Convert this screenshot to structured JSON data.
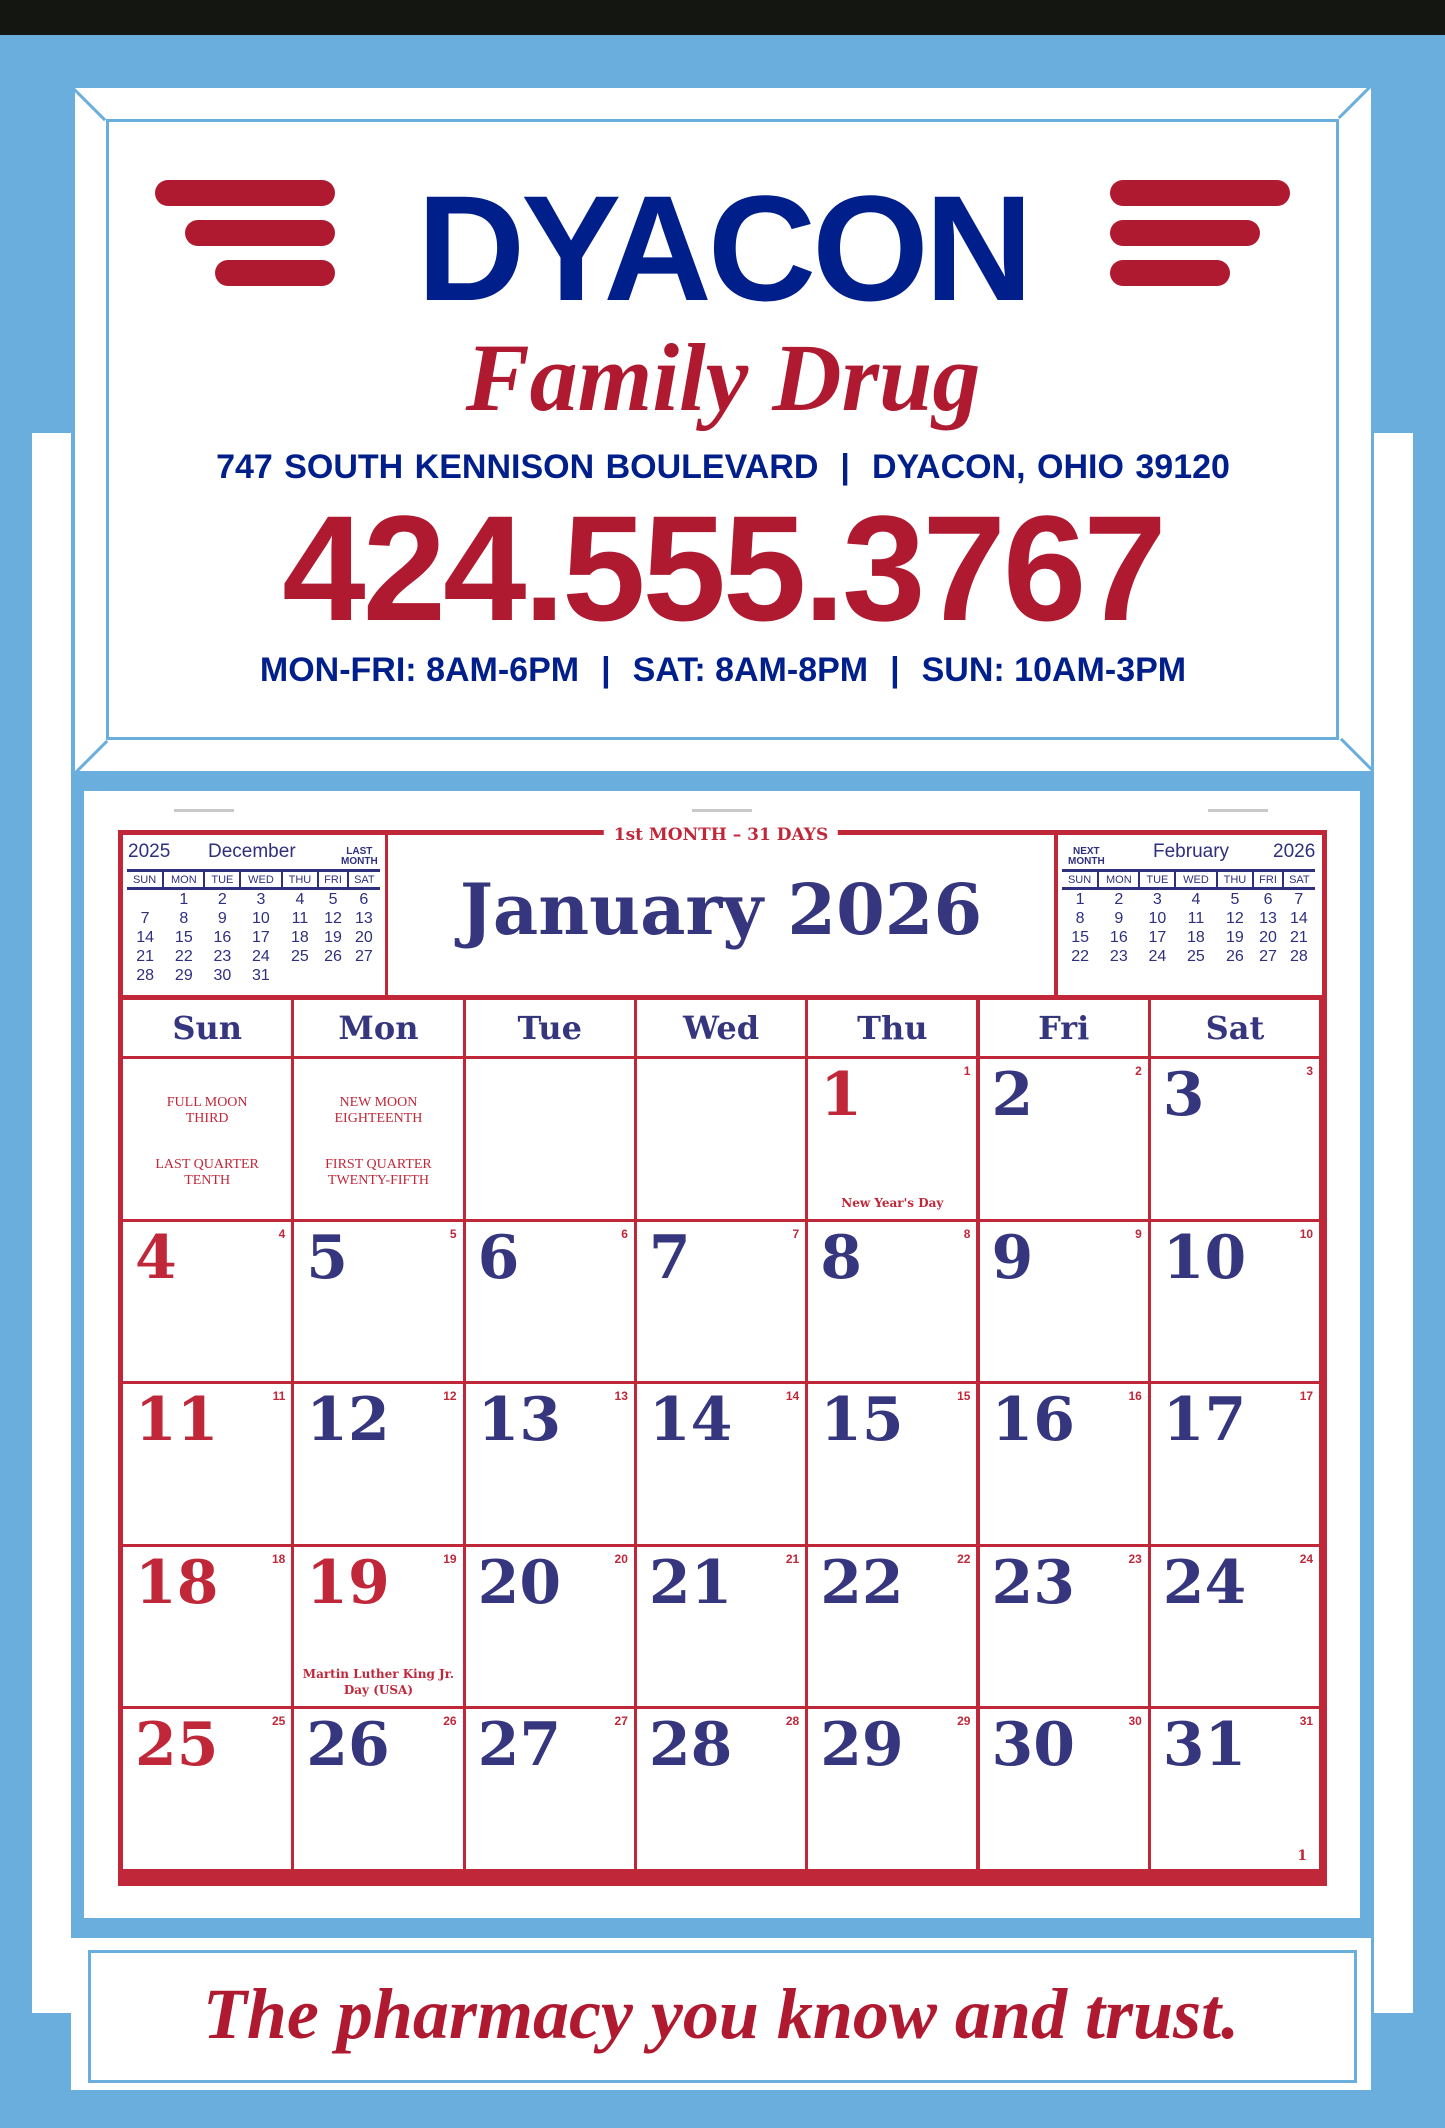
{
  "brand": {
    "name": "DYACON",
    "subtitle": "Family Drug",
    "address": "747 SOUTH KENNISON BOULEVARD",
    "city": "DYACON, OHIO 39120",
    "phone": "424.555.3767",
    "hours": [
      "MON-FRI: 8AM-6PM",
      "SAT: 8AM-8PM",
      "SUN: 10AM-3PM"
    ],
    "separator": "|",
    "tagline": "The pharmacy you know and trust."
  },
  "colors": {
    "red": "#c0283a",
    "navy": "#36367e",
    "brand_blue": "#001f8a",
    "background": "#6aaedd"
  },
  "calendar": {
    "month_label": "1st MONTH – 31 DAYS",
    "title": "January 2026",
    "weekdays": [
      "Sun",
      "Mon",
      "Tue",
      "Wed",
      "Thu",
      "Fri",
      "Sat"
    ],
    "prev": {
      "year": "2025",
      "month": "December",
      "tag": [
        "LAST",
        "MONTH"
      ],
      "weekdays": [
        "SUN",
        "MON",
        "TUE",
        "WED",
        "THU",
        "FRI",
        "SAT"
      ],
      "rows": [
        [
          "",
          "1",
          "2",
          "3",
          "4",
          "5",
          "6"
        ],
        [
          "7",
          "8",
          "9",
          "10",
          "11",
          "12",
          "13"
        ],
        [
          "14",
          "15",
          "16",
          "17",
          "18",
          "19",
          "20"
        ],
        [
          "21",
          "22",
          "23",
          "24",
          "25",
          "26",
          "27"
        ],
        [
          "28",
          "29",
          "30",
          "31",
          "",
          "",
          ""
        ]
      ]
    },
    "next": {
      "year": "2026",
      "month": "February",
      "tag": [
        "NEXT",
        "MONTH"
      ],
      "weekdays": [
        "SUN",
        "MON",
        "TUE",
        "WED",
        "THU",
        "FRI",
        "SAT"
      ],
      "rows": [
        [
          "1",
          "2",
          "3",
          "4",
          "5",
          "6",
          "7"
        ],
        [
          "8",
          "9",
          "10",
          "11",
          "12",
          "13",
          "14"
        ],
        [
          "15",
          "16",
          "17",
          "18",
          "19",
          "20",
          "21"
        ],
        [
          "22",
          "23",
          "24",
          "25",
          "26",
          "27",
          "28"
        ]
      ]
    },
    "moon_phases": [
      {
        "col": 0,
        "lines": [
          [
            "FULL MOON",
            "THIRD"
          ],
          [
            "LAST QUARTER",
            "TENTH"
          ]
        ]
      },
      {
        "col": 1,
        "lines": [
          [
            "NEW MOON",
            "EIGHTEENTH"
          ],
          [
            "FIRST QUARTER",
            "TWENTY-FIFTH"
          ]
        ]
      }
    ],
    "weeks": [
      [
        null,
        null,
        null,
        null,
        {
          "day": "1",
          "doy": "1",
          "red": true,
          "note": "New Year's Day"
        },
        {
          "day": "2",
          "doy": "2"
        },
        {
          "day": "3",
          "doy": "3"
        }
      ],
      [
        {
          "day": "4",
          "doy": "4",
          "red": true
        },
        {
          "day": "5",
          "doy": "5"
        },
        {
          "day": "6",
          "doy": "6"
        },
        {
          "day": "7",
          "doy": "7"
        },
        {
          "day": "8",
          "doy": "8"
        },
        {
          "day": "9",
          "doy": "9"
        },
        {
          "day": "10",
          "doy": "10"
        }
      ],
      [
        {
          "day": "11",
          "doy": "11",
          "red": true
        },
        {
          "day": "12",
          "doy": "12"
        },
        {
          "day": "13",
          "doy": "13"
        },
        {
          "day": "14",
          "doy": "14"
        },
        {
          "day": "15",
          "doy": "15"
        },
        {
          "day": "16",
          "doy": "16"
        },
        {
          "day": "17",
          "doy": "17"
        }
      ],
      [
        {
          "day": "18",
          "doy": "18",
          "red": true
        },
        {
          "day": "19",
          "doy": "19",
          "red": true,
          "note": "Martin Luther King Jr. Day (USA)"
        },
        {
          "day": "20",
          "doy": "20"
        },
        {
          "day": "21",
          "doy": "21"
        },
        {
          "day": "22",
          "doy": "22"
        },
        {
          "day": "23",
          "doy": "23"
        },
        {
          "day": "24",
          "doy": "24"
        }
      ],
      [
        {
          "day": "25",
          "doy": "25",
          "red": true
        },
        {
          "day": "26",
          "doy": "26"
        },
        {
          "day": "27",
          "doy": "27"
        },
        {
          "day": "28",
          "doy": "28"
        },
        {
          "day": "29",
          "doy": "29"
        },
        {
          "day": "30",
          "doy": "30"
        },
        {
          "day": "31",
          "doy": "31",
          "tail": "1"
        }
      ]
    ]
  }
}
